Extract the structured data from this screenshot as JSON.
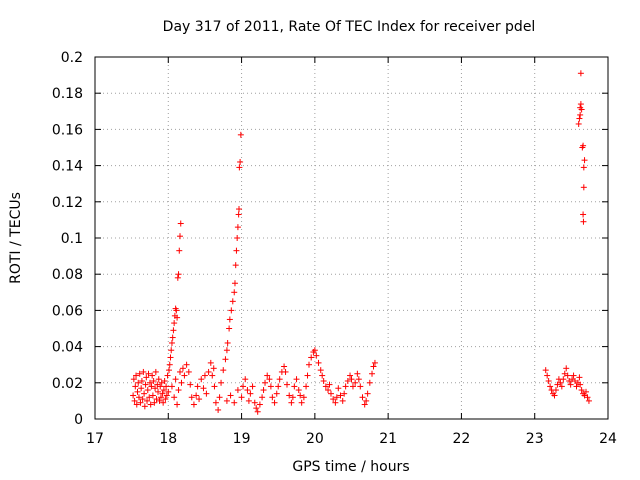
{
  "chart_data": {
    "type": "scatter",
    "title": "Day 317 of 2011, Rate Of TEC Index for receiver pdel",
    "xlabel": "GPS time / hours",
    "ylabel": "ROTI / TECUs",
    "xlim": [
      17,
      24
    ],
    "ylim": [
      0,
      0.2
    ],
    "grid": true,
    "marker": "+",
    "marker_color": "#ff0000",
    "x_ticks": [
      "17",
      "18",
      "19",
      "20",
      "21",
      "22",
      "23",
      "24"
    ],
    "y_ticks": [
      "0",
      "0.02",
      "0.04",
      "0.06",
      "0.08",
      "0.1",
      "0.12",
      "0.14",
      "0.16",
      "0.18",
      "0.2"
    ],
    "series": [
      {
        "name": "ROTI",
        "points": [
          [
            17.52,
            0.013
          ],
          [
            17.53,
            0.022
          ],
          [
            17.54,
            0.01
          ],
          [
            17.55,
            0.018
          ],
          [
            17.56,
            0.024
          ],
          [
            17.57,
            0.008
          ],
          [
            17.58,
            0.015
          ],
          [
            17.59,
            0.02
          ],
          [
            17.6,
            0.012
          ],
          [
            17.61,
            0.025
          ],
          [
            17.62,
            0.009
          ],
          [
            17.63,
            0.017
          ],
          [
            17.64,
            0.021
          ],
          [
            17.65,
            0.011
          ],
          [
            17.66,
            0.026
          ],
          [
            17.67,
            0.014
          ],
          [
            17.68,
            0.007
          ],
          [
            17.69,
            0.019
          ],
          [
            17.7,
            0.023
          ],
          [
            17.71,
            0.01
          ],
          [
            17.72,
            0.016
          ],
          [
            17.73,
            0.025
          ],
          [
            17.74,
            0.012
          ],
          [
            17.75,
            0.02
          ],
          [
            17.76,
            0.008
          ],
          [
            17.77,
            0.018
          ],
          [
            17.78,
            0.024
          ],
          [
            17.79,
            0.013
          ],
          [
            17.8,
            0.021
          ],
          [
            17.81,
            0.009
          ],
          [
            17.82,
            0.017
          ],
          [
            17.83,
            0.026
          ],
          [
            17.84,
            0.011
          ],
          [
            17.85,
            0.019
          ],
          [
            17.86,
            0.015
          ],
          [
            17.87,
            0.022
          ],
          [
            17.88,
            0.01
          ],
          [
            17.89,
            0.018
          ],
          [
            17.9,
            0.012
          ],
          [
            17.91,
            0.02
          ],
          [
            17.92,
            0.014
          ],
          [
            17.93,
            0.009
          ],
          [
            17.94,
            0.016
          ],
          [
            17.95,
            0.021
          ],
          [
            17.96,
            0.011
          ],
          [
            17.97,
            0.018
          ],
          [
            17.98,
            0.013
          ],
          [
            17.99,
            0.024
          ],
          [
            18.0,
            0.015
          ],
          [
            18.01,
            0.027
          ],
          [
            18.02,
            0.03
          ],
          [
            18.03,
            0.034
          ],
          [
            18.04,
            0.038
          ],
          [
            18.05,
            0.042
          ],
          [
            18.06,
            0.045
          ],
          [
            18.07,
            0.049
          ],
          [
            18.08,
            0.053
          ],
          [
            18.09,
            0.057
          ],
          [
            18.1,
            0.061
          ],
          [
            18.11,
            0.06
          ],
          [
            18.12,
            0.056
          ],
          [
            18.13,
            0.078
          ],
          [
            18.14,
            0.08
          ],
          [
            18.15,
            0.093
          ],
          [
            18.16,
            0.101
          ],
          [
            18.17,
            0.108
          ],
          [
            18.05,
            0.018
          ],
          [
            18.08,
            0.012
          ],
          [
            18.1,
            0.022
          ],
          [
            18.12,
            0.008
          ],
          [
            18.14,
            0.016
          ],
          [
            18.16,
            0.026
          ],
          [
            18.18,
            0.02
          ],
          [
            18.2,
            0.028
          ],
          [
            18.22,
            0.024
          ],
          [
            18.25,
            0.03
          ],
          [
            18.28,
            0.026
          ],
          [
            18.3,
            0.019
          ],
          [
            18.32,
            0.012
          ],
          [
            18.35,
            0.008
          ],
          [
            18.38,
            0.013
          ],
          [
            18.4,
            0.018
          ],
          [
            18.42,
            0.011
          ],
          [
            18.45,
            0.022
          ],
          [
            18.48,
            0.017
          ],
          [
            18.5,
            0.024
          ],
          [
            18.52,
            0.014
          ],
          [
            18.55,
            0.026
          ],
          [
            18.58,
            0.031
          ],
          [
            18.6,
            0.024
          ],
          [
            18.62,
            0.028
          ],
          [
            18.63,
            0.018
          ],
          [
            18.65,
            0.009
          ],
          [
            18.68,
            0.005
          ],
          [
            18.7,
            0.012
          ],
          [
            18.72,
            0.02
          ],
          [
            18.75,
            0.027
          ],
          [
            18.78,
            0.033
          ],
          [
            18.8,
            0.038
          ],
          [
            18.81,
            0.042
          ],
          [
            18.83,
            0.05
          ],
          [
            18.84,
            0.055
          ],
          [
            18.86,
            0.06
          ],
          [
            18.88,
            0.065
          ],
          [
            18.9,
            0.07
          ],
          [
            18.91,
            0.075
          ],
          [
            18.92,
            0.085
          ],
          [
            18.93,
            0.093
          ],
          [
            18.94,
            0.1
          ],
          [
            18.95,
            0.106
          ],
          [
            18.96,
            0.113
          ],
          [
            18.965,
            0.116
          ],
          [
            18.97,
            0.139
          ],
          [
            18.98,
            0.142
          ],
          [
            18.99,
            0.157
          ],
          [
            18.8,
            0.01
          ],
          [
            18.85,
            0.013
          ],
          [
            18.9,
            0.009
          ],
          [
            18.95,
            0.016
          ],
          [
            19.0,
            0.012
          ],
          [
            19.02,
            0.018
          ],
          [
            19.05,
            0.022
          ],
          [
            19.08,
            0.016
          ],
          [
            19.1,
            0.01
          ],
          [
            19.12,
            0.014
          ],
          [
            19.15,
            0.018
          ],
          [
            19.18,
            0.009
          ],
          [
            19.2,
            0.006
          ],
          [
            19.22,
            0.004
          ],
          [
            19.25,
            0.008
          ],
          [
            19.28,
            0.012
          ],
          [
            19.3,
            0.016
          ],
          [
            19.32,
            0.02
          ],
          [
            19.35,
            0.024
          ],
          [
            19.38,
            0.022
          ],
          [
            19.4,
            0.018
          ],
          [
            19.42,
            0.012
          ],
          [
            19.45,
            0.009
          ],
          [
            19.48,
            0.014
          ],
          [
            19.5,
            0.018
          ],
          [
            19.52,
            0.022
          ],
          [
            19.55,
            0.026
          ],
          [
            19.58,
            0.029
          ],
          [
            19.6,
            0.026
          ],
          [
            19.62,
            0.019
          ],
          [
            19.65,
            0.013
          ],
          [
            19.68,
            0.009
          ],
          [
            19.7,
            0.012
          ],
          [
            19.72,
            0.018
          ],
          [
            19.75,
            0.022
          ],
          [
            19.78,
            0.016
          ],
          [
            19.8,
            0.013
          ],
          [
            19.82,
            0.009
          ],
          [
            19.85,
            0.012
          ],
          [
            19.88,
            0.018
          ],
          [
            19.9,
            0.024
          ],
          [
            19.92,
            0.03
          ],
          [
            19.95,
            0.034
          ],
          [
            19.98,
            0.037
          ],
          [
            20.0,
            0.038
          ],
          [
            20.02,
            0.035
          ],
          [
            20.05,
            0.031
          ],
          [
            20.08,
            0.027
          ],
          [
            20.1,
            0.024
          ],
          [
            20.12,
            0.021
          ],
          [
            20.15,
            0.018
          ],
          [
            20.18,
            0.016
          ],
          [
            20.2,
            0.019
          ],
          [
            20.22,
            0.014
          ],
          [
            20.25,
            0.011
          ],
          [
            20.28,
            0.009
          ],
          [
            20.3,
            0.012
          ],
          [
            20.32,
            0.017
          ],
          [
            20.35,
            0.013
          ],
          [
            20.38,
            0.01
          ],
          [
            20.4,
            0.014
          ],
          [
            20.42,
            0.018
          ],
          [
            20.45,
            0.021
          ],
          [
            20.48,
            0.024
          ],
          [
            20.5,
            0.022
          ],
          [
            20.52,
            0.018
          ],
          [
            20.55,
            0.02
          ],
          [
            20.58,
            0.025
          ],
          [
            20.6,
            0.022
          ],
          [
            20.62,
            0.018
          ],
          [
            20.65,
            0.012
          ],
          [
            20.68,
            0.008
          ],
          [
            20.7,
            0.01
          ],
          [
            20.72,
            0.014
          ],
          [
            20.75,
            0.02
          ],
          [
            20.78,
            0.025
          ],
          [
            20.8,
            0.029
          ],
          [
            20.82,
            0.031
          ],
          [
            23.15,
            0.027
          ],
          [
            23.17,
            0.024
          ],
          [
            23.19,
            0.021
          ],
          [
            23.21,
            0.018
          ],
          [
            23.23,
            0.016
          ],
          [
            23.25,
            0.014
          ],
          [
            23.27,
            0.013
          ],
          [
            23.29,
            0.016
          ],
          [
            23.31,
            0.019
          ],
          [
            23.33,
            0.022
          ],
          [
            23.35,
            0.02
          ],
          [
            23.37,
            0.018
          ],
          [
            23.39,
            0.022
          ],
          [
            23.41,
            0.025
          ],
          [
            23.43,
            0.028
          ],
          [
            23.45,
            0.024
          ],
          [
            23.47,
            0.021
          ],
          [
            23.49,
            0.019
          ],
          [
            23.51,
            0.022
          ],
          [
            23.53,
            0.024
          ],
          [
            23.55,
            0.021
          ],
          [
            23.57,
            0.018
          ],
          [
            23.59,
            0.02
          ],
          [
            23.61,
            0.023
          ],
          [
            23.62,
            0.019
          ],
          [
            23.64,
            0.016
          ],
          [
            23.66,
            0.014
          ],
          [
            23.68,
            0.013
          ],
          [
            23.7,
            0.015
          ],
          [
            23.72,
            0.012
          ],
          [
            23.74,
            0.01
          ],
          [
            23.6,
            0.163
          ],
          [
            23.61,
            0.166
          ],
          [
            23.62,
            0.168
          ],
          [
            23.62,
            0.172
          ],
          [
            23.63,
            0.174
          ],
          [
            23.64,
            0.171
          ],
          [
            23.63,
            0.191
          ],
          [
            23.65,
            0.15
          ],
          [
            23.66,
            0.151
          ],
          [
            23.67,
            0.139
          ],
          [
            23.68,
            0.143
          ],
          [
            23.67,
            0.128
          ],
          [
            23.66,
            0.113
          ],
          [
            23.665,
            0.109
          ]
        ]
      }
    ]
  }
}
